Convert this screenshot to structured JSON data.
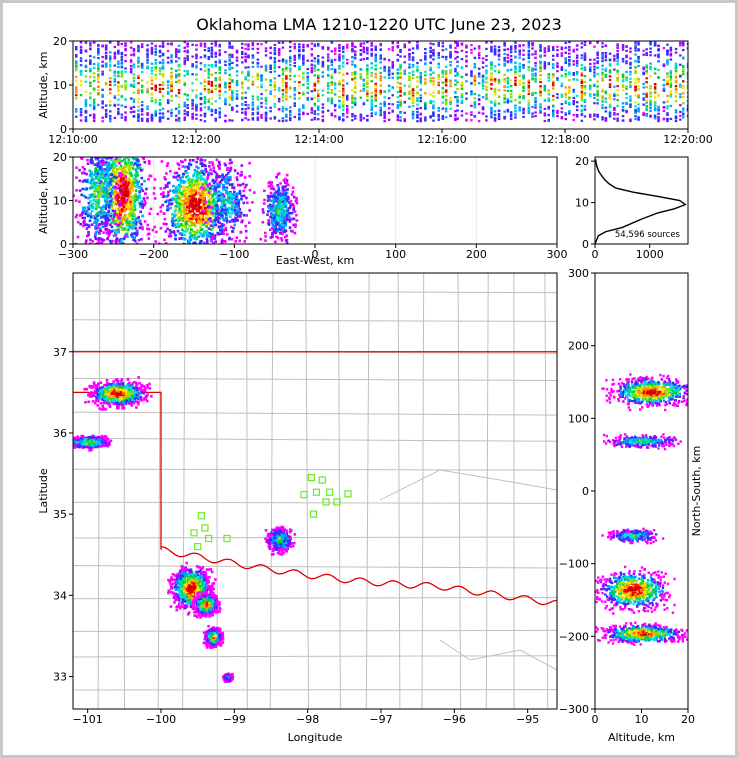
{
  "title": "Oklahoma LMA 1210-1220 UTC June 23, 2023",
  "colors": {
    "frame_border": "#c8c8c8",
    "state_line": "#e00000",
    "boundaries": "#c0c0c0",
    "stations": "#66ee22",
    "palette": [
      "#ff00ff",
      "#a000ff",
      "#3030ff",
      "#00a0ff",
      "#00e0e0",
      "#00d040",
      "#90e000",
      "#ffe000",
      "#ff9000",
      "#ff0000",
      "#d00000",
      "#ffffff",
      "#000000"
    ]
  },
  "chart_data": [
    {
      "id": "time_height",
      "type": "scatter",
      "description_of_density": "dense vertical columns of sources at altitudes 3-20 km across the full time window",
      "xlabel": "",
      "ylabel": "Altitude, km",
      "xlim": [
        "12:10:00",
        "12:20:00"
      ],
      "ylim": [
        0,
        20
      ],
      "x_ticks": [
        "12:10:00",
        "12:12:00",
        "12:14:00",
        "12:16:00",
        "12:18:00",
        "12:20:00"
      ],
      "y_ticks": [
        0,
        10,
        20
      ]
    },
    {
      "id": "ew_height",
      "type": "scatter",
      "xlabel": "East-West, km",
      "ylabel": "Altitude, km",
      "xlim": [
        -300,
        300
      ],
      "ylim": [
        0,
        20
      ],
      "x_ticks": [
        -300,
        -200,
        -100,
        0,
        100,
        200,
        300
      ],
      "y_ticks": [
        0,
        10,
        20
      ],
      "clusters": [
        {
          "x": -240,
          "y": 12,
          "w": 30,
          "h": 14,
          "peak": 1.0
        },
        {
          "x": -270,
          "y": 12,
          "w": 25,
          "h": 12,
          "peak": 0.5
        },
        {
          "x": -150,
          "y": 9,
          "w": 40,
          "h": 11,
          "peak": 1.0
        },
        {
          "x": -110,
          "y": 10,
          "w": 25,
          "h": 10,
          "peak": 0.35
        },
        {
          "x": -45,
          "y": 8,
          "w": 18,
          "h": 7,
          "peak": 0.45
        }
      ]
    },
    {
      "id": "altitude_histogram",
      "type": "line",
      "xlabel": "",
      "ylabel": "",
      "xlim": [
        0,
        1700
      ],
      "ylim": [
        0,
        21
      ],
      "x_ticks": [
        0,
        1000
      ],
      "y_ticks": [
        0,
        10,
        20
      ],
      "annotation": "54,596 sources",
      "profile": [
        [
          0,
          0
        ],
        [
          60,
          2
        ],
        [
          200,
          3
        ],
        [
          500,
          4
        ],
        [
          850,
          6
        ],
        [
          1150,
          7.5
        ],
        [
          1450,
          8.5
        ],
        [
          1650,
          9.5
        ],
        [
          1550,
          10.5
        ],
        [
          1150,
          11.5
        ],
        [
          700,
          12.5
        ],
        [
          380,
          13.5
        ],
        [
          260,
          14.5
        ],
        [
          180,
          15.5
        ],
        [
          120,
          16.5
        ],
        [
          70,
          17.5
        ],
        [
          40,
          18.5
        ],
        [
          20,
          19.5
        ],
        [
          10,
          20.5
        ]
      ]
    },
    {
      "id": "plan_view",
      "type": "scatter",
      "xlabel": "Longitude",
      "ylabel": "Latitude",
      "xlim": [
        -101.2,
        -94.6
      ],
      "ylim": [
        32.6,
        37.97
      ],
      "x_ticks": [
        -101,
        -100,
        -99,
        -98,
        -97,
        -96,
        -95
      ],
      "y_ticks": [
        33,
        34,
        35,
        36,
        37
      ],
      "clusters": [
        {
          "x": -100.6,
          "y": 36.5,
          "w": 0.35,
          "h": 0.14,
          "peak": 1.0
        },
        {
          "x": -101.0,
          "y": 35.9,
          "w": 0.25,
          "h": 0.07,
          "peak": 0.6
        },
        {
          "x": -99.6,
          "y": 34.1,
          "w": 0.25,
          "h": 0.25,
          "peak": 1.0
        },
        {
          "x": -99.4,
          "y": 33.9,
          "w": 0.15,
          "h": 0.12,
          "peak": 0.9
        },
        {
          "x": -99.3,
          "y": 33.5,
          "w": 0.1,
          "h": 0.1,
          "peak": 0.8
        },
        {
          "x": -98.4,
          "y": 34.7,
          "w": 0.15,
          "h": 0.14,
          "peak": 0.5
        },
        {
          "x": -99.1,
          "y": 33.0,
          "w": 0.05,
          "h": 0.04,
          "peak": 0.4
        }
      ],
      "stations": [
        [
          -99.45,
          34.98
        ],
        [
          -99.55,
          34.77
        ],
        [
          -99.4,
          34.83
        ],
        [
          -99.35,
          34.7
        ],
        [
          -99.5,
          34.6
        ],
        [
          -99.1,
          34.7
        ],
        [
          -97.95,
          35.45
        ],
        [
          -98.05,
          35.24
        ],
        [
          -97.88,
          35.27
        ],
        [
          -97.8,
          35.42
        ],
        [
          -97.7,
          35.27
        ],
        [
          -97.75,
          35.15
        ],
        [
          -97.92,
          35.0
        ],
        [
          -97.6,
          35.15
        ],
        [
          -97.45,
          35.25
        ]
      ]
    },
    {
      "id": "ns_height",
      "type": "scatter",
      "xlabel": "Altitude, km",
      "ylabel": "North-South, km",
      "xlim": [
        0,
        20
      ],
      "ylim": [
        -300,
        300
      ],
      "x_ticks": [
        0,
        10,
        20
      ],
      "y_ticks": [
        -300,
        -200,
        -100,
        0,
        100,
        200,
        300
      ],
      "clusters": [
        {
          "x": 12,
          "y": 138,
          "w": 8,
          "h": 18,
          "peak": 1.0
        },
        {
          "x": 10,
          "y": 70,
          "w": 7,
          "h": 8,
          "peak": 0.45
        },
        {
          "x": 8,
          "y": -135,
          "w": 7,
          "h": 25,
          "peak": 1.0
        },
        {
          "x": 10,
          "y": -195,
          "w": 8,
          "h": 12,
          "peak": 0.9
        },
        {
          "x": 8,
          "y": -60,
          "w": 5,
          "h": 8,
          "peak": 0.4
        }
      ]
    }
  ]
}
